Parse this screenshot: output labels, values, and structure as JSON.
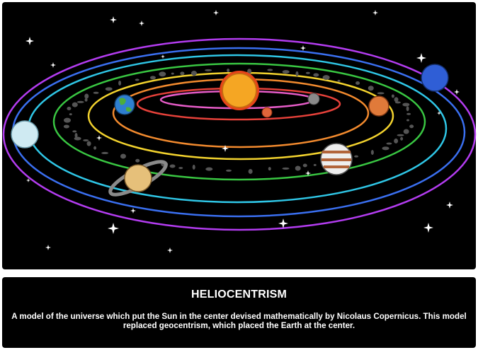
{
  "caption": {
    "title": "HELIOCENTRISM",
    "description": "A model of the universe which put the Sun in the center devised mathematically by Nicolaus Copernicus. This model replaced geocentrism, which placed the Earth at the center."
  }
}
